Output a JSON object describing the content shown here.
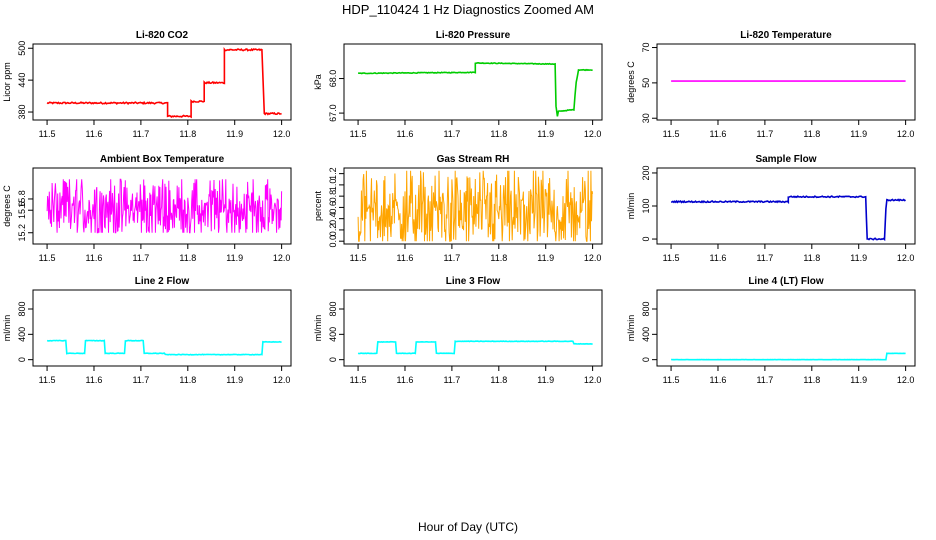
{
  "figure": {
    "title": "HDP_110424  1 Hz Diagnostics Zoomed AM",
    "xlabel": "Hour of Day (UTC)"
  },
  "chart_data": [
    {
      "type": "line",
      "title": "Li-820 CO2",
      "ylabel": "Licor ppm",
      "color": "#ff0000",
      "xlim": [
        11.47,
        12.02
      ],
      "ylim": [
        365,
        508
      ],
      "xticks": [
        11.5,
        11.6,
        11.7,
        11.8,
        11.9,
        12.0
      ],
      "xtick_labels": [
        "11.5",
        "11.6",
        "11.7",
        "11.8",
        "11.9",
        "12.0"
      ],
      "yticks": [
        380,
        440,
        500
      ],
      "ytick_labels": [
        "380",
        "440",
        "500"
      ],
      "x": [
        11.5,
        11.757,
        11.757,
        11.807,
        11.807,
        11.835,
        11.835,
        11.878,
        11.878,
        11.958,
        11.963,
        12.0
      ],
      "y": [
        397,
        397,
        372,
        372,
        400,
        400,
        435,
        435,
        497,
        497,
        377,
        377
      ],
      "noise": 1.5
    },
    {
      "type": "line",
      "title": "Li-820 Pressure",
      "ylabel": "kPa",
      "color": "#00cc00",
      "xlim": [
        11.47,
        12.02
      ],
      "ylim": [
        66.8,
        69.0
      ],
      "xticks": [
        11.5,
        11.6,
        11.7,
        11.8,
        11.9,
        12.0
      ],
      "xtick_labels": [
        "11.5",
        "11.6",
        "11.7",
        "11.8",
        "11.9",
        "12.0"
      ],
      "yticks": [
        67.0,
        68.0
      ],
      "ytick_labels": [
        "67.0",
        "68.0"
      ],
      "x": [
        11.5,
        11.75,
        11.75,
        11.92,
        11.922,
        11.925,
        11.927,
        11.96,
        11.965,
        11.97,
        12.0
      ],
      "y": [
        68.15,
        68.18,
        68.45,
        68.42,
        67.2,
        66.9,
        67.05,
        67.1,
        67.9,
        68.25,
        68.25
      ],
      "noise": 0.01
    },
    {
      "type": "line",
      "title": "Li-820 Temperature",
      "ylabel": "degrees C",
      "color": "#ff00ff",
      "xlim": [
        11.47,
        12.02
      ],
      "ylim": [
        29,
        72
      ],
      "xticks": [
        11.5,
        11.6,
        11.7,
        11.8,
        11.9,
        12.0
      ],
      "xtick_labels": [
        "11.5",
        "11.6",
        "11.7",
        "11.8",
        "11.9",
        "12.0"
      ],
      "yticks": [
        30,
        50,
        70
      ],
      "ytick_labels": [
        "30",
        "50",
        "70"
      ],
      "x": [
        11.5,
        12.0
      ],
      "y": [
        51,
        51
      ],
      "noise": 0
    },
    {
      "type": "line",
      "title": "Ambient Box Temperature",
      "ylabel": "degrees C",
      "color": "#ff00ff",
      "xlim": [
        11.47,
        12.02
      ],
      "ylim": [
        15.0,
        16.35
      ],
      "xticks": [
        11.5,
        11.6,
        11.7,
        11.8,
        11.9,
        12.0
      ],
      "xtick_labels": [
        "11.5",
        "11.6",
        "11.7",
        "11.8",
        "11.9",
        "12.0"
      ],
      "yticks": [
        15.2,
        15.6,
        15.8
      ],
      "ytick_labels": [
        "15.2",
        "15.6",
        "15.8"
      ],
      "x": [
        11.5,
        12.0
      ],
      "y": [
        15.62,
        15.62
      ],
      "noise_range": [
        15.2,
        16.15
      ],
      "dense": true
    },
    {
      "type": "line",
      "title": "Gas Stream RH",
      "ylabel": "percent",
      "color": "#ffa500",
      "xlim": [
        11.47,
        12.02
      ],
      "ylim": [
        -0.05,
        1.3
      ],
      "xticks": [
        11.5,
        11.6,
        11.7,
        11.8,
        11.9,
        12.0
      ],
      "xtick_labels": [
        "11.5",
        "11.6",
        "11.7",
        "11.8",
        "11.9",
        "12.0"
      ],
      "yticks": [
        0.0,
        0.2,
        0.4,
        0.6,
        0.8,
        1.0,
        1.2
      ],
      "ytick_labels": [
        "0.0",
        "0.2",
        "0.4",
        "0.6",
        "0.8",
        "1.0",
        "1.2"
      ],
      "x": [
        11.5,
        12.0
      ],
      "y": [
        0.5,
        0.5
      ],
      "noise_range": [
        0.0,
        1.25
      ],
      "dense": true
    },
    {
      "type": "line",
      "title": "Sample Flow",
      "ylabel": "ml/min",
      "color": "#0000cc",
      "xlim": [
        11.47,
        12.02
      ],
      "ylim": [
        -15,
        215
      ],
      "xticks": [
        11.5,
        11.6,
        11.7,
        11.8,
        11.9,
        12.0
      ],
      "xtick_labels": [
        "11.5",
        "11.6",
        "11.7",
        "11.8",
        "11.9",
        "12.0"
      ],
      "yticks": [
        0,
        100,
        200
      ],
      "ytick_labels": [
        "0",
        "100",
        "200"
      ],
      "x": [
        11.5,
        11.75,
        11.75,
        11.915,
        11.918,
        11.955,
        11.958,
        11.96,
        12.0
      ],
      "y": [
        113,
        113,
        128,
        128,
        0,
        0,
        90,
        118,
        118
      ],
      "noise": 2
    },
    {
      "type": "line",
      "title": "Line 2 Flow",
      "ylabel": "ml/min",
      "color": "#00ffff",
      "xlim": [
        11.47,
        12.02
      ],
      "ylim": [
        -100,
        1100
      ],
      "xticks": [
        11.5,
        11.6,
        11.7,
        11.8,
        11.9,
        12.0
      ],
      "xtick_labels": [
        "11.5",
        "11.6",
        "11.7",
        "11.8",
        "11.9",
        "12.0"
      ],
      "yticks": [
        0,
        400,
        800
      ],
      "ytick_labels": [
        "0",
        "400",
        "800"
      ],
      "x": [
        11.5,
        11.54,
        11.542,
        11.58,
        11.582,
        11.622,
        11.624,
        11.665,
        11.667,
        11.705,
        11.707,
        11.75,
        11.752,
        11.958,
        11.96,
        12.0
      ],
      "y": [
        300,
        300,
        100,
        100,
        300,
        300,
        100,
        100,
        300,
        300,
        100,
        100,
        80,
        80,
        280,
        280
      ],
      "noise": 4
    },
    {
      "type": "line",
      "title": "Line 3 Flow",
      "ylabel": "ml/min",
      "color": "#00ffff",
      "xlim": [
        11.47,
        12.02
      ],
      "ylim": [
        -100,
        1100
      ],
      "xticks": [
        11.5,
        11.6,
        11.7,
        11.8,
        11.9,
        12.0
      ],
      "xtick_labels": [
        "11.5",
        "11.6",
        "11.7",
        "11.8",
        "11.9",
        "12.0"
      ],
      "yticks": [
        0,
        400,
        800
      ],
      "ytick_labels": [
        "0",
        "400",
        "800"
      ],
      "x": [
        11.5,
        11.54,
        11.542,
        11.58,
        11.582,
        11.622,
        11.624,
        11.665,
        11.667,
        11.705,
        11.707,
        11.958,
        11.96,
        12.0
      ],
      "y": [
        100,
        100,
        280,
        280,
        100,
        100,
        280,
        280,
        100,
        100,
        290,
        290,
        250,
        250
      ],
      "noise": 3
    },
    {
      "type": "line",
      "title": "Line 4 (LT) Flow",
      "ylabel": "ml/min",
      "color": "#00ffff",
      "xlim": [
        11.47,
        12.02
      ],
      "ylim": [
        -100,
        1100
      ],
      "xticks": [
        11.5,
        11.6,
        11.7,
        11.8,
        11.9,
        12.0
      ],
      "xtick_labels": [
        "11.5",
        "11.6",
        "11.7",
        "11.8",
        "11.9",
        "12.0"
      ],
      "yticks": [
        0,
        400,
        800
      ],
      "ytick_labels": [
        "0",
        "400",
        "800"
      ],
      "x": [
        11.5,
        11.958,
        11.96,
        12.0
      ],
      "y": [
        0,
        0,
        100,
        100
      ],
      "noise": 1
    }
  ]
}
